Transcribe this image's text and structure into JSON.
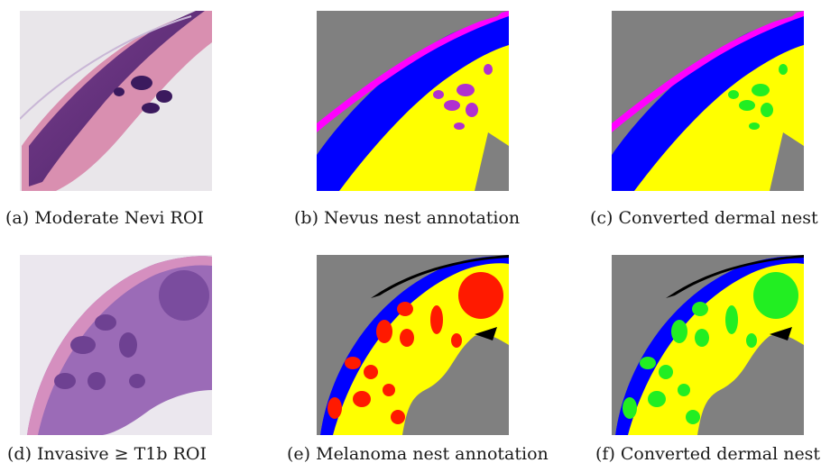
{
  "figure": {
    "captions": {
      "a": "(a) Moderate Nevi ROI",
      "b": "(b) Nevus nest annotation",
      "c": "(c) Converted dermal nest",
      "d": "(d) Invasive ≥ T1b ROI",
      "e": "(e) Melanoma nest annotation",
      "f": "(f) Converted dermal nest"
    }
  },
  "colors": {
    "background_gray": "#808080",
    "dermis_yellow": "#ffff00",
    "epidermis_blue": "#0000ff",
    "stratum_magenta": "#ff00ff",
    "nevus_nest_purple": "#b030d0",
    "melanoma_nest_red": "#ff1a00",
    "converted_nest_green": "#22ee22",
    "tissue_edge_black": "#000000"
  }
}
